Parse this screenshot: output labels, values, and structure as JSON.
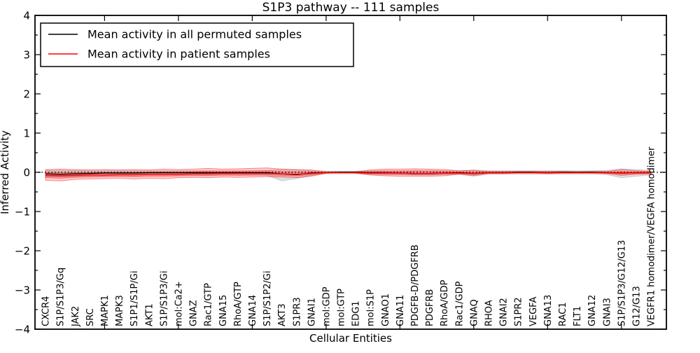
{
  "chart_data": {
    "type": "line",
    "title": "S1P3 pathway -- 111 samples",
    "xlabel": "Cellular Entities",
    "ylabel": "Inferred Activity",
    "ylim": [
      -4,
      4
    ],
    "ytick_values": [
      -4,
      -3,
      -2,
      -1,
      0,
      1,
      2,
      3,
      4
    ],
    "ytick_labels": [
      "−4",
      "−3",
      "−2",
      "−1",
      "0",
      "1",
      "2",
      "3",
      "4"
    ],
    "x_major_tick_positions": [
      5,
      10,
      15,
      20,
      25,
      30,
      35,
      40
    ],
    "grid": false,
    "zero_reference_line": {
      "y": 0,
      "style": "dotted",
      "color": "#000000"
    },
    "legend": {
      "position": "upper left",
      "items": [
        {
          "label": "Mean activity in all permuted samples",
          "color": "#000000"
        },
        {
          "label": "Mean activity in patient samples",
          "color": "#ff0000"
        }
      ]
    },
    "categories": [
      "CXCR4",
      "S1P/S1P3/Gq",
      "JAK2",
      "SRC",
      "MAPK1",
      "MAPK3",
      "S1P1/S1P/Gi",
      "AKT1",
      "S1P/S1P3/Gi",
      "mol:Ca2+",
      "GNAZ",
      "Rac1/GTP",
      "GNA15",
      "RhoA/GTP",
      "GNA14",
      "S1P/S1P2/Gi",
      "AKT3",
      "S1PR3",
      "GNAI1",
      "mol:GDP",
      "mol:GTP",
      "EDG1",
      "mol:S1P",
      "GNAO1",
      "GNA11",
      "PDGFB-D/PDGFRB",
      "PDGFRB",
      "RhoA/GDP",
      "Rac1/GDP",
      "GNAQ",
      "RHOA",
      "GNAI2",
      "S1PR2",
      "VEGFA",
      "GNA13",
      "RAC1",
      "FLT1",
      "GNA12",
      "GNAI3",
      "S1P/S1P3/G12/G13",
      "G12/G13",
      "VEGFR1 homodimer/VEGFA homodimer"
    ],
    "series": [
      {
        "name": "Mean activity in all permuted samples",
        "color": "#000000",
        "values": [
          -0.04,
          -0.05,
          -0.04,
          -0.03,
          -0.02,
          -0.02,
          -0.02,
          -0.01,
          -0.01,
          -0.01,
          -0.01,
          -0.01,
          -0.01,
          -0.01,
          -0.01,
          -0.01,
          -0.04,
          -0.06,
          -0.02,
          -0.01,
          0,
          0,
          -0.01,
          -0.01,
          -0.02,
          -0.03,
          -0.03,
          -0.02,
          -0.01,
          -0.03,
          -0.01,
          -0.01,
          0,
          0,
          -0.01,
          0,
          0,
          0,
          -0.01,
          -0.02,
          -0.01,
          -0.01
        ]
      },
      {
        "name": "Mean activity in patient samples",
        "color": "#ff0000",
        "values": [
          -0.08,
          -0.09,
          -0.08,
          -0.07,
          -0.07,
          -0.06,
          -0.06,
          -0.05,
          -0.05,
          -0.05,
          -0.04,
          -0.04,
          -0.03,
          -0.03,
          -0.03,
          -0.03,
          -0.04,
          -0.05,
          -0.03,
          -0.01,
          -0.01,
          -0.01,
          -0.02,
          -0.02,
          -0.02,
          -0.03,
          -0.03,
          -0.02,
          -0.02,
          -0.03,
          -0.01,
          -0.01,
          -0.01,
          -0.01,
          -0.01,
          -0.01,
          -0.01,
          -0.01,
          -0.01,
          -0.02,
          -0.01,
          -0.01
        ]
      }
    ],
    "bands": [
      {
        "name": "permuted-samples-spread",
        "color": "#000000",
        "opacity": 0.12,
        "edge_opacity": 0.15,
        "upper": [
          0.05,
          0.05,
          0.05,
          0.04,
          0.04,
          0.04,
          0.04,
          0.04,
          0.04,
          0.04,
          0.04,
          0.04,
          0.04,
          0.04,
          0.04,
          0.05,
          0.08,
          0.06,
          0.04,
          0.03,
          0.03,
          0.03,
          0.04,
          0.04,
          0.04,
          0.05,
          0.05,
          0.04,
          0.04,
          0.06,
          0.04,
          0.04,
          0.04,
          0.04,
          0.04,
          0.04,
          0.04,
          0.04,
          0.05,
          0.09,
          0.07,
          0.05
        ],
        "lower": [
          -0.12,
          -0.13,
          -0.12,
          -0.11,
          -0.1,
          -0.1,
          -0.1,
          -0.09,
          -0.09,
          -0.08,
          -0.08,
          -0.08,
          -0.07,
          -0.07,
          -0.07,
          -0.08,
          -0.22,
          -0.16,
          -0.08,
          -0.04,
          -0.04,
          -0.04,
          -0.05,
          -0.06,
          -0.06,
          -0.07,
          -0.07,
          -0.06,
          -0.05,
          -0.1,
          -0.05,
          -0.05,
          -0.05,
          -0.05,
          -0.05,
          -0.05,
          -0.05,
          -0.05,
          -0.06,
          -0.14,
          -0.1,
          -0.07
        ]
      },
      {
        "name": "patient-samples-spread-outer",
        "color": "#ff0000",
        "opacity": 0.18,
        "edge_opacity": 0.45,
        "upper": [
          0.07,
          0.08,
          0.07,
          0.06,
          0.07,
          0.06,
          0.07,
          0.06,
          0.08,
          0.07,
          0.08,
          0.1,
          0.08,
          0.09,
          0.1,
          0.11,
          0.08,
          0.07,
          0.06,
          0.01,
          0.01,
          0.01,
          0.06,
          0.08,
          0.08,
          0.09,
          0.08,
          0.07,
          0.04,
          0.05,
          0.02,
          0.02,
          0.02,
          0.02,
          0.02,
          0.02,
          0.01,
          0.02,
          0.02,
          0.07,
          0.04,
          0.02
        ],
        "lower": [
          -0.2,
          -0.22,
          -0.18,
          -0.17,
          -0.16,
          -0.15,
          -0.17,
          -0.15,
          -0.16,
          -0.14,
          -0.13,
          -0.14,
          -0.12,
          -0.13,
          -0.12,
          -0.11,
          -0.12,
          -0.14,
          -0.1,
          -0.02,
          -0.01,
          -0.02,
          -0.07,
          -0.09,
          -0.1,
          -0.1,
          -0.1,
          -0.09,
          -0.05,
          -0.08,
          -0.03,
          -0.03,
          -0.02,
          -0.02,
          -0.03,
          -0.02,
          -0.02,
          -0.02,
          -0.03,
          -0.08,
          -0.05,
          -0.04
        ]
      },
      {
        "name": "patient-samples-spread-inner",
        "color": "#ff0000",
        "opacity": 0.22,
        "edge_opacity": 0.3,
        "upper": [
          -0.005,
          -0.005,
          -0.005,
          -0.005,
          0,
          0,
          0.005,
          0.005,
          0.015,
          0.01,
          0.02,
          0.03,
          0.025,
          0.03,
          0.035,
          0.04,
          0.02,
          0.01,
          0.015,
          0,
          0,
          0,
          0.02,
          0.03,
          0.03,
          0.03,
          0.025,
          0.025,
          0.01,
          0.01,
          0.005,
          0.005,
          0.005,
          0.005,
          0.005,
          0.005,
          0,
          0.005,
          0.005,
          0.025,
          0.015,
          0.005
        ],
        "lower": [
          -0.14,
          -0.155,
          -0.13,
          -0.12,
          -0.115,
          -0.105,
          -0.115,
          -0.1,
          -0.105,
          -0.095,
          -0.085,
          -0.09,
          -0.075,
          -0.08,
          -0.075,
          -0.07,
          -0.08,
          -0.095,
          -0.065,
          -0.015,
          -0.01,
          -0.015,
          -0.045,
          -0.055,
          -0.06,
          -0.065,
          -0.065,
          -0.055,
          -0.035,
          -0.055,
          -0.02,
          -0.02,
          -0.015,
          -0.015,
          -0.02,
          -0.015,
          -0.015,
          -0.015,
          -0.02,
          -0.05,
          -0.03,
          -0.025
        ]
      }
    ]
  }
}
